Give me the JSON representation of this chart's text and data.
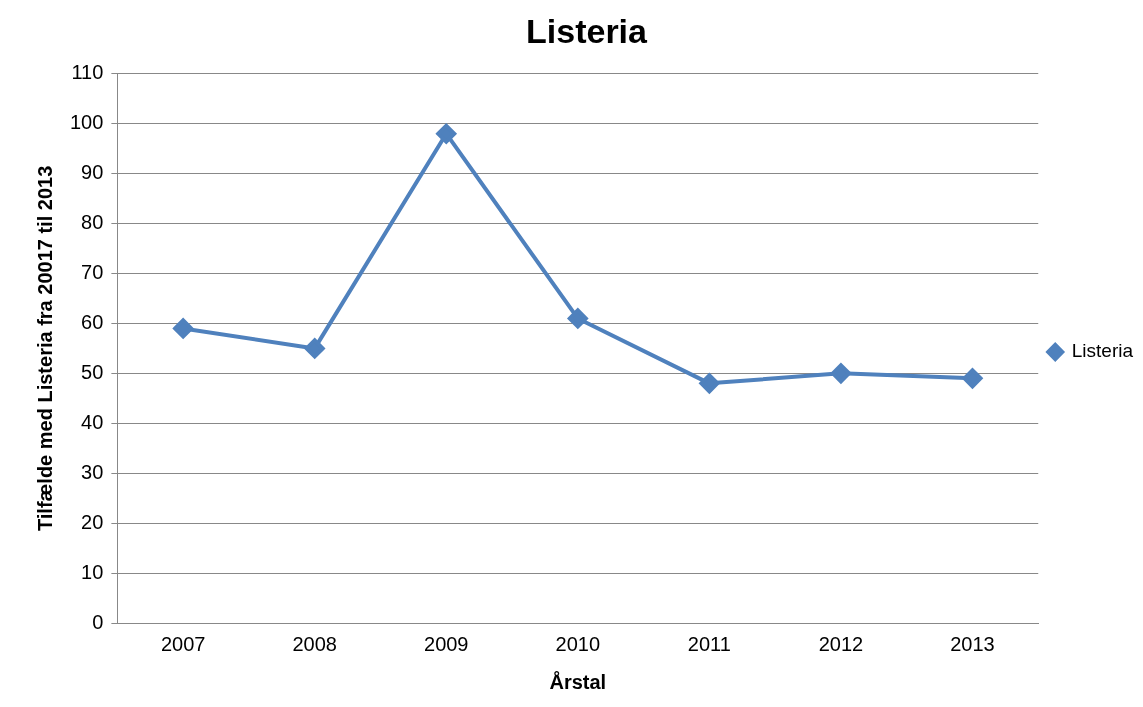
{
  "chart_data": {
    "type": "line",
    "title": "Listeria",
    "xlabel": "Årstal",
    "ylabel": "Tilfælde med Listeria fra 20017 til 2013",
    "categories": [
      "2007",
      "2008",
      "2009",
      "2010",
      "2011",
      "2012",
      "2013"
    ],
    "series": [
      {
        "name": "Listeria",
        "color": "#4f81bd",
        "values": [
          59,
          55,
          98,
          61,
          48,
          50,
          49
        ]
      }
    ],
    "ylim": [
      0,
      110
    ],
    "yticks": [
      0,
      10,
      20,
      30,
      40,
      50,
      60,
      70,
      80,
      90,
      100,
      110
    ],
    "grid": "y",
    "legend": "right",
    "marker": "diamond",
    "line_style": "solid"
  }
}
